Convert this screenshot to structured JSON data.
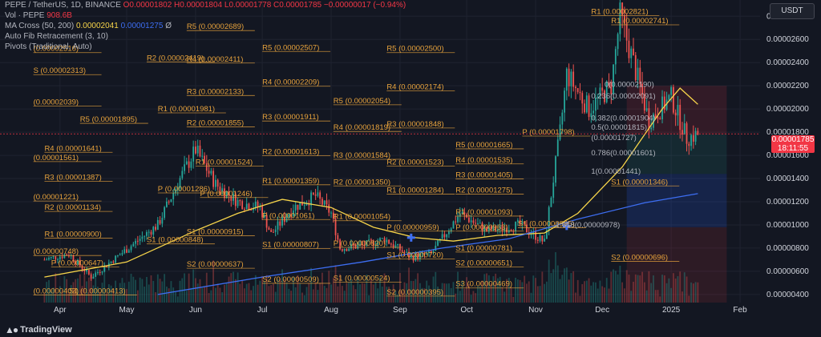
{
  "header": {
    "symbol_line": "PEPE / TetherUS, 1D, BINANCE",
    "ohlc": "O0.00001802 H0.00001804 L0.00001778 C0.00001785 −0.00000017 (−0.94%)",
    "vol_label": "Vol · PEPE",
    "vol_value": "908.6B",
    "ma_label": "MA Cross (50, 200)",
    "ma_value1": "0.00002041",
    "ma_value2": "0.00001275",
    "ma_icon": "Ø",
    "fib_label": "Auto Fib Retracement (3, 10)",
    "pivots_label": "Pivots (Traditional, Auto)"
  },
  "currency": "USDT",
  "last_price": {
    "value": "0.00001785",
    "countdown": "18:11:55"
  },
  "brand": "TradingView",
  "colors": {
    "background": "#131722",
    "up": "#26a69a",
    "down": "#ef5350",
    "ma_fast": "#f7d54a",
    "ma_slow": "#3d6ef2",
    "pivot": "#e8a33c",
    "price_line": "#f23645",
    "text": "#d1d4dc"
  },
  "chart_data": {
    "type": "candlestick",
    "x_axis": {
      "ticks": [
        "Apr",
        "May",
        "Jun",
        "Jul",
        "Aug",
        "Sep",
        "Oct",
        "Nov",
        "Dec",
        "2025",
        "Feb"
      ]
    },
    "y_axis": {
      "ticks": [
        "0.00000400",
        "0.00000600",
        "0.00000800",
        "0.00001000",
        "0.00001200",
        "0.00001400",
        "0.00001600",
        "0.00001800",
        "0.00002000",
        "0.00002200",
        "0.00002400",
        "0.00002600",
        "0.00002800"
      ],
      "range": [
        3.3e-06,
        2.94e-05
      ]
    },
    "price_path": [
      [
        "2024-03-25",
        7e-06
      ],
      [
        "2024-04-05",
        7.5e-06
      ],
      [
        "2024-04-15",
        5.5e-06
      ],
      [
        "2024-04-25",
        7e-06
      ],
      [
        "2024-05-05",
        8.5e-06
      ],
      [
        "2024-05-15",
        1e-05
      ],
      [
        "2024-05-25",
        1.4e-05
      ],
      [
        "2024-06-01",
        1.65e-05
      ],
      [
        "2024-06-10",
        1.35e-05
      ],
      [
        "2024-06-20",
        1.2e-05
      ],
      [
        "2024-06-30",
        1.15e-05
      ],
      [
        "2024-07-05",
        9.2e-06
      ],
      [
        "2024-07-15",
        1.15e-05
      ],
      [
        "2024-07-25",
        1.25e-05
      ],
      [
        "2024-08-01",
        1.1e-05
      ],
      [
        "2024-08-05",
        8e-06
      ],
      [
        "2024-08-15",
        8.2e-06
      ],
      [
        "2024-08-25",
        8.8e-06
      ],
      [
        "2024-09-06",
        7.2e-06
      ],
      [
        "2024-09-15",
        7.5e-06
      ],
      [
        "2024-09-28",
        1.1e-05
      ],
      [
        "2024-10-10",
        9.5e-06
      ],
      [
        "2024-10-25",
        1e-05
      ],
      [
        "2024-11-05",
        8.5e-06
      ],
      [
        "2024-11-12",
        1.8e-05
      ],
      [
        "2024-11-15",
        2.3e-05
      ],
      [
        "2024-11-25",
        2e-05
      ],
      [
        "2024-12-05",
        2.2e-05
      ],
      [
        "2024-12-09",
        2.8e-05
      ],
      [
        "2024-12-15",
        2.4e-05
      ],
      [
        "2024-12-22",
        1.9e-05
      ],
      [
        "2025-01-01",
        2.1e-05
      ],
      [
        "2025-01-08",
        1.75e-05
      ],
      [
        "2025-01-13",
        1.78e-05
      ]
    ],
    "series": [
      {
        "name": "MA 50",
        "values": [
          [
            "2024-03-25",
            5.5e-06
          ],
          [
            "2024-05-01",
            6.8e-06
          ],
          [
            "2024-06-01",
            9.5e-06
          ],
          [
            "2024-06-20",
            1.1e-05
          ],
          [
            "2024-07-10",
            1.22e-05
          ],
          [
            "2024-08-01",
            1.15e-05
          ],
          [
            "2024-08-20",
            9.8e-06
          ],
          [
            "2024-09-08",
            8.9e-06
          ],
          [
            "2024-09-25",
            8.6e-06
          ],
          [
            "2024-10-15",
            9.1e-06
          ],
          [
            "2024-11-05",
            9.3e-06
          ],
          [
            "2024-11-20",
            1.1e-05
          ],
          [
            "2024-12-10",
            1.5e-05
          ],
          [
            "2024-12-28",
            2e-05
          ],
          [
            "2025-01-05",
            2.18e-05
          ],
          [
            "2025-01-13",
            2.04e-05
          ]
        ]
      },
      {
        "name": "MA 200",
        "values": [
          [
            "2024-05-15",
            4e-06
          ],
          [
            "2024-07-01",
            5.5e-06
          ],
          [
            "2024-08-15",
            6.8e-06
          ],
          [
            "2024-09-20",
            8e-06
          ],
          [
            "2024-10-20",
            8.8e-06
          ],
          [
            "2024-11-20",
            1.05e-05
          ],
          [
            "2024-12-20",
            1.19e-05
          ],
          [
            "2025-01-13",
            1.27e-05
          ]
        ]
      }
    ],
    "crosses": [
      [
        "2024-09-06",
        8.9e-06
      ],
      [
        "2024-11-15",
        9.9e-06
      ]
    ],
    "pivot_labels": [
      [
        "2024-03-20",
        2.31e-05,
        "S (0.00002313)"
      ],
      [
        "2024-03-20",
        2.5e-05,
        "(0.00002516)"
      ],
      [
        "2024-03-20",
        2.04e-05,
        "(0.00002039)"
      ],
      [
        "2024-04-10",
        1.89e-05,
        "R5 (0.00001895)"
      ],
      [
        "2024-03-20",
        1.56e-05,
        "(0.00001561)"
      ],
      [
        "2024-03-25",
        1.64e-05,
        "R4 (0.00001641)"
      ],
      [
        "2024-03-25",
        1.39e-05,
        "R3 (0.00001387)"
      ],
      [
        "2024-03-20",
        1.22e-05,
        "(0.00001221)"
      ],
      [
        "2024-03-25",
        1.13e-05,
        "R2 (0.00001134)"
      ],
      [
        "2024-03-25",
        9e-06,
        "R1 (0.00000900)"
      ],
      [
        "2024-03-20",
        7.5e-06,
        "(0.00000748)"
      ],
      [
        "2024-03-28",
        6.5e-06,
        "P (0.00000647)"
      ],
      [
        "2024-03-20",
        4.1e-06,
        "(0.00000403)"
      ],
      [
        "2024-04-05",
        4.1e-06,
        "S1 (0.00000413)"
      ],
      [
        "2024-05-28",
        2.69e-05,
        "R5 (0.00002689)"
      ],
      [
        "2024-05-10",
        2.42e-05,
        "R2 (0.00002419)"
      ],
      [
        "2024-05-28",
        2.41e-05,
        "R4 (0.00002411)"
      ],
      [
        "2024-05-28",
        2.13e-05,
        "R3 (0.00002133)"
      ],
      [
        "2024-05-15",
        1.98e-05,
        "R1 (0.00001981)"
      ],
      [
        "2024-05-28",
        1.86e-05,
        "R2 (0.00001855)"
      ],
      [
        "2024-06-01",
        1.52e-05,
        "R1 (0.00001524)"
      ],
      [
        "2024-05-15",
        1.29e-05,
        "P (0.00001286)"
      ],
      [
        "2024-06-03",
        1.25e-05,
        "P (0.00001246)"
      ],
      [
        "2024-05-28",
        9.2e-06,
        "S1 (0.00000915)"
      ],
      [
        "2024-05-10",
        8.5e-06,
        "S1 (0.00000848)"
      ],
      [
        "2024-05-28",
        6.4e-06,
        "S2 (0.00000637)"
      ],
      [
        "2024-07-01",
        2.51e-05,
        "R5 (0.00002507)"
      ],
      [
        "2024-07-01",
        2.21e-05,
        "R4 (0.00002209)"
      ],
      [
        "2024-07-01",
        1.91e-05,
        "R3 (0.00001911)"
      ],
      [
        "2024-07-01",
        1.61e-05,
        "R2 (0.00001613)"
      ],
      [
        "2024-07-01",
        1.36e-05,
        "R1 (0.00001359)"
      ],
      [
        "2024-07-01",
        1.06e-05,
        "P (0.00001061)"
      ],
      [
        "2024-07-01",
        8.1e-06,
        "S1 (0.00000807)"
      ],
      [
        "2024-07-01",
        5.1e-06,
        "S2 (0.00000509)"
      ],
      [
        "2024-08-02",
        2.05e-05,
        "R5 (0.00002054)"
      ],
      [
        "2024-08-02",
        1.82e-05,
        "R4 (0.00001819)"
      ],
      [
        "2024-08-02",
        1.58e-05,
        "R3 (0.00001584)"
      ],
      [
        "2024-08-02",
        1.35e-05,
        "R2 (0.00001350)"
      ],
      [
        "2024-08-02",
        1.05e-05,
        "R1 (0.00001054)"
      ],
      [
        "2024-08-02",
        8.2e-06,
        "P (0.00000820)"
      ],
      [
        "2024-08-02",
        5.2e-06,
        "S1 (0.00000524)"
      ],
      [
        "2024-08-26",
        2.5e-05,
        "R5 (0.00002500)"
      ],
      [
        "2024-08-26",
        2.17e-05,
        "R4 (0.00002174)"
      ],
      [
        "2024-08-26",
        1.85e-05,
        "R3 (0.00001848)"
      ],
      [
        "2024-08-26",
        1.52e-05,
        "R2 (0.00001523)"
      ],
      [
        "2024-08-26",
        1.28e-05,
        "R1 (0.00001284)"
      ],
      [
        "2024-08-26",
        9.6e-06,
        "P (0.00000959)"
      ],
      [
        "2024-08-26",
        7.2e-06,
        "S1 (0.00000720)"
      ],
      [
        "2024-08-26",
        4e-06,
        "S2 (0.00000395)"
      ],
      [
        "2024-09-26",
        1.67e-05,
        "R5 (0.00001665)"
      ],
      [
        "2024-09-26",
        1.54e-05,
        "R4 (0.00001535)"
      ],
      [
        "2024-09-26",
        1.41e-05,
        "R3 (0.00001405)"
      ],
      [
        "2024-09-26",
        1.28e-05,
        "R2 (0.00001275)"
      ],
      [
        "2024-09-26",
        1.09e-05,
        "R1 (0.00001093)"
      ],
      [
        "2024-09-26",
        9.6e-06,
        "P (0.00000963)"
      ],
      [
        "2024-09-26",
        7.8e-06,
        "S1 (0.00000781)"
      ],
      [
        "2024-09-26",
        6.5e-06,
        "S2 (0.00000651)"
      ],
      [
        "2024-09-26",
        4.7e-06,
        "S3 (0.00000469)"
      ],
      [
        "2024-10-26",
        1.78e-05,
        "P (0.00001798)"
      ],
      [
        "2024-10-24",
        9.9e-06,
        "S1 (0.00000995)"
      ],
      [
        "2024-11-26",
        2.82e-05,
        "R1 (0.00002821)"
      ],
      [
        "2024-12-05",
        2.74e-05,
        "R1 (0.00002741)"
      ],
      [
        "2024-12-05",
        1.35e-05,
        "S1 (0.00001346)"
      ],
      [
        "2024-12-05",
        7e-06,
        "S2 (0.00000696)"
      ]
    ],
    "fib_labels": [
      [
        "2024-12-02",
        2.19e-05,
        "0(0.00002190)"
      ],
      [
        "2024-11-26",
        2.09e-05,
        "0.236(0.00002091)"
      ],
      [
        "2024-11-26",
        1.9e-05,
        "0.382(0.00001904)"
      ],
      [
        "2024-11-26",
        1.82e-05,
        "0.5(0.00001815)"
      ],
      [
        "2024-11-26",
        1.73e-05,
        "(0.00001727)"
      ],
      [
        "2024-11-26",
        1.6e-05,
        "0.786(0.00001601)"
      ],
      [
        "2024-11-26",
        1.44e-05,
        "1(0.00001441)"
      ],
      [
        "2024-11-10",
        9.8e-06,
        "1.618(0.00000978)"
      ]
    ]
  }
}
